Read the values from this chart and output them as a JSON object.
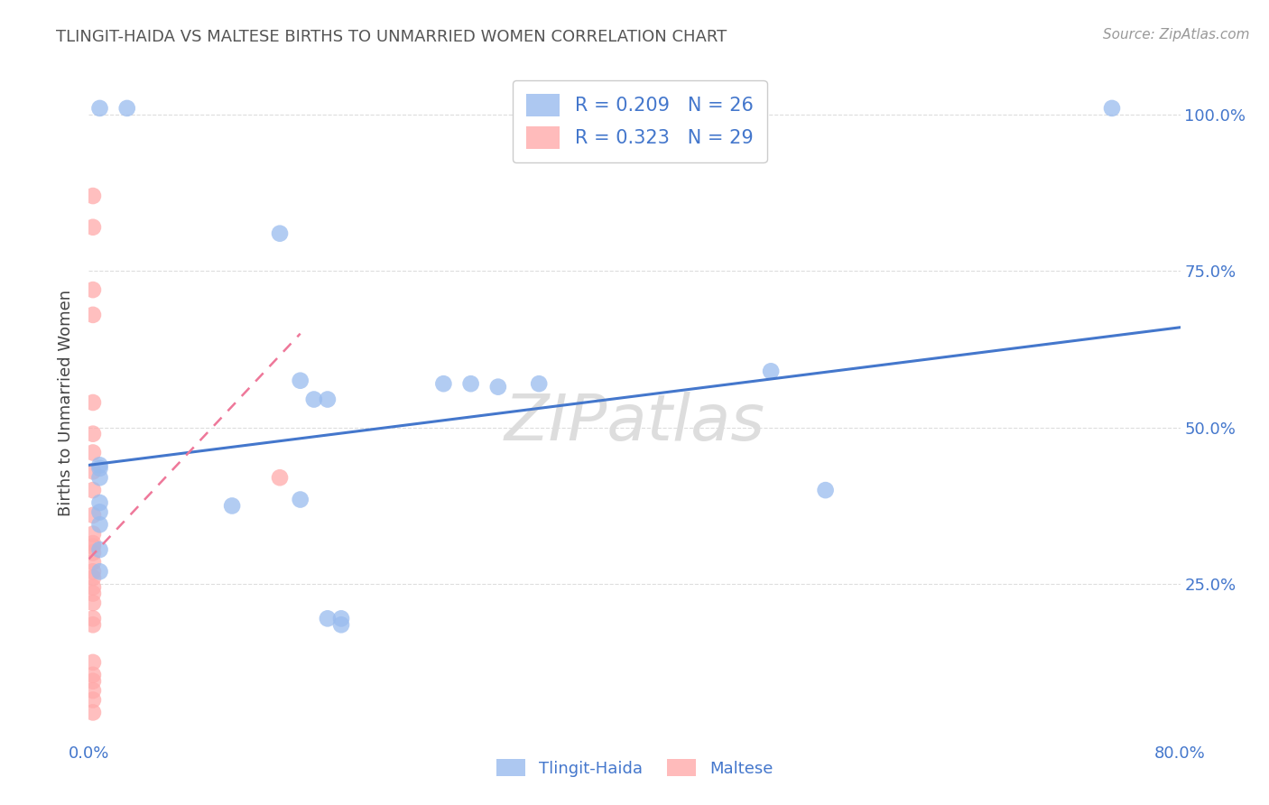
{
  "title": "TLINGIT-HAIDA VS MALTESE BIRTHS TO UNMARRIED WOMEN CORRELATION CHART",
  "source": "Source: ZipAtlas.com",
  "ylabel": "Births to Unmarried Women",
  "x_range": [
    0.0,
    0.8
  ],
  "y_range": [
    0.0,
    1.08
  ],
  "legend_blue_label": "R = 0.209   N = 26",
  "legend_pink_label": "R = 0.323   N = 29",
  "tlingit_x": [
    0.008,
    0.028,
    0.14,
    0.155,
    0.165,
    0.175,
    0.26,
    0.28,
    0.3,
    0.33,
    0.5,
    0.54,
    0.75,
    0.155,
    0.175,
    0.185,
    0.185,
    0.008,
    0.105,
    0.008,
    0.008,
    0.008,
    0.008,
    0.008,
    0.008,
    0.008
  ],
  "tlingit_y": [
    1.01,
    1.01,
    0.81,
    0.575,
    0.545,
    0.545,
    0.57,
    0.57,
    0.565,
    0.57,
    0.59,
    0.4,
    1.01,
    0.385,
    0.195,
    0.195,
    0.185,
    0.435,
    0.375,
    0.305,
    0.345,
    0.365,
    0.38,
    0.42,
    0.44,
    0.27
  ],
  "maltese_x": [
    0.003,
    0.003,
    0.003,
    0.003,
    0.003,
    0.003,
    0.003,
    0.003,
    0.003,
    0.003,
    0.003,
    0.003,
    0.003,
    0.003,
    0.003,
    0.003,
    0.003,
    0.003,
    0.003,
    0.003,
    0.003,
    0.003,
    0.003,
    0.003,
    0.003,
    0.003,
    0.003,
    0.003,
    0.14
  ],
  "maltese_y": [
    0.87,
    0.82,
    0.72,
    0.68,
    0.54,
    0.49,
    0.46,
    0.43,
    0.4,
    0.36,
    0.33,
    0.315,
    0.31,
    0.3,
    0.285,
    0.27,
    0.26,
    0.245,
    0.235,
    0.22,
    0.195,
    0.185,
    0.125,
    0.105,
    0.095,
    0.08,
    0.065,
    0.045,
    0.42
  ],
  "blue_line_x": [
    0.0,
    0.8
  ],
  "blue_line_y": [
    0.44,
    0.66
  ],
  "pink_line_x": [
    0.0,
    0.155
  ],
  "pink_line_y": [
    0.29,
    0.65
  ],
  "bg_color": "#ffffff",
  "blue_color": "#99BBEE",
  "pink_color": "#FFAAAA",
  "trendline_blue": "#4477CC",
  "trendline_pink": "#EE7799",
  "grid_color": "#DDDDDD",
  "axis_color": "#4477CC",
  "title_color": "#555555",
  "source_color": "#999999",
  "ylabel_color": "#444444",
  "legend_bg": "#ffffff",
  "legend_edge": "#cccccc",
  "watermark_color": "#DDDDDD"
}
